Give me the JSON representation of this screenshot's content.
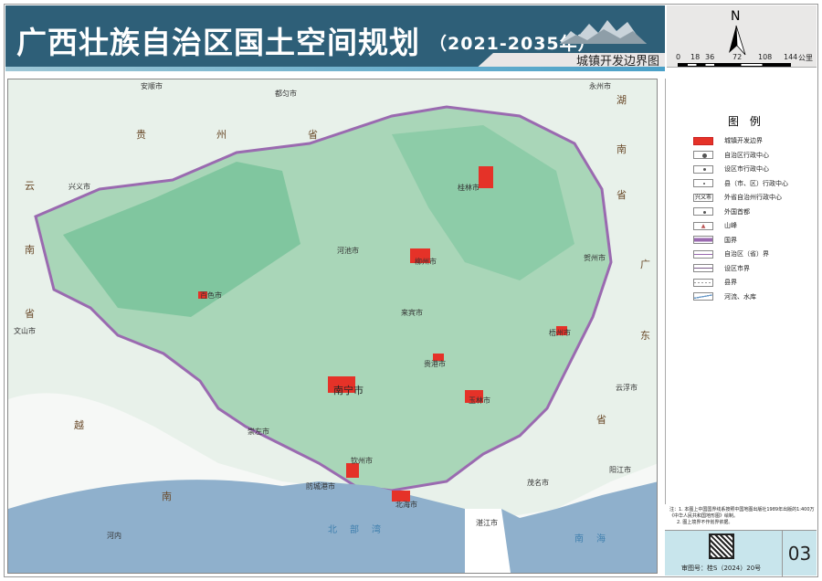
{
  "header": {
    "title": "广西壮族自治区国土空间规划",
    "years": "（2021-2035年）",
    "subtitle": "城镇开发边界图"
  },
  "compass": {
    "north": "N",
    "scale_ticks": [
      "0",
      "18",
      "36",
      "72",
      "108",
      "144"
    ],
    "scale_unit": "公里"
  },
  "legend": {
    "title": "图 例",
    "items": [
      {
        "label": "城镇开发边界",
        "symbol": "red-fill"
      },
      {
        "label": "自治区行政中心",
        "symbol": "large-dot"
      },
      {
        "label": "设区市行政中心",
        "symbol": "dot"
      },
      {
        "label": "县（市、区）行政中心",
        "symbol": "small-dot"
      },
      {
        "label": "外省自治州行政中心",
        "symbol": "text",
        "sample": "兴义市"
      },
      {
        "label": "外国首都",
        "symbol": "dot"
      },
      {
        "label": "山峰",
        "symbol": "peak"
      },
      {
        "label": "国界",
        "symbol": "national-border"
      },
      {
        "label": "自治区（省）界",
        "symbol": "province-border"
      },
      {
        "label": "设区市界",
        "symbol": "city-border"
      },
      {
        "label": "县界",
        "symbol": "county-border"
      },
      {
        "label": "河流、水库",
        "symbol": "river"
      }
    ]
  },
  "notes": [
    "注：1. 本图上中国国界线系按照中国地图出版社1989年出版的1:400万《中华人民共和国地形图》绘制。",
    "2. 图上境界不作划界依据。"
  ],
  "footer": {
    "audit_no": "审图号：桂S（2024）20号",
    "page": "03"
  },
  "map": {
    "cities": [
      "安顺市",
      "都匀市",
      "永州市",
      "兴义市",
      "桂林市",
      "河池市",
      "柳州市",
      "贺州市",
      "百色市",
      "来宾市",
      "文山市",
      "梧州市",
      "贵港市",
      "南宁市",
      "玉林市",
      "云浮市",
      "崇左市",
      "钦州市",
      "防城港市",
      "北海市",
      "茂名市",
      "阳江市",
      "湛江市",
      "河内"
    ],
    "regions": [
      "湖",
      "南",
      "省",
      "贵",
      "州",
      "省",
      "云",
      "南",
      "省",
      "广",
      "东",
      "省",
      "越",
      "南"
    ],
    "seas": [
      "北部湾",
      "南海"
    ]
  },
  "colors": {
    "header": "#2e5f78",
    "ubg": "#e53228",
    "sea": "#8fb0cc",
    "land": "#8ec9a8"
  }
}
